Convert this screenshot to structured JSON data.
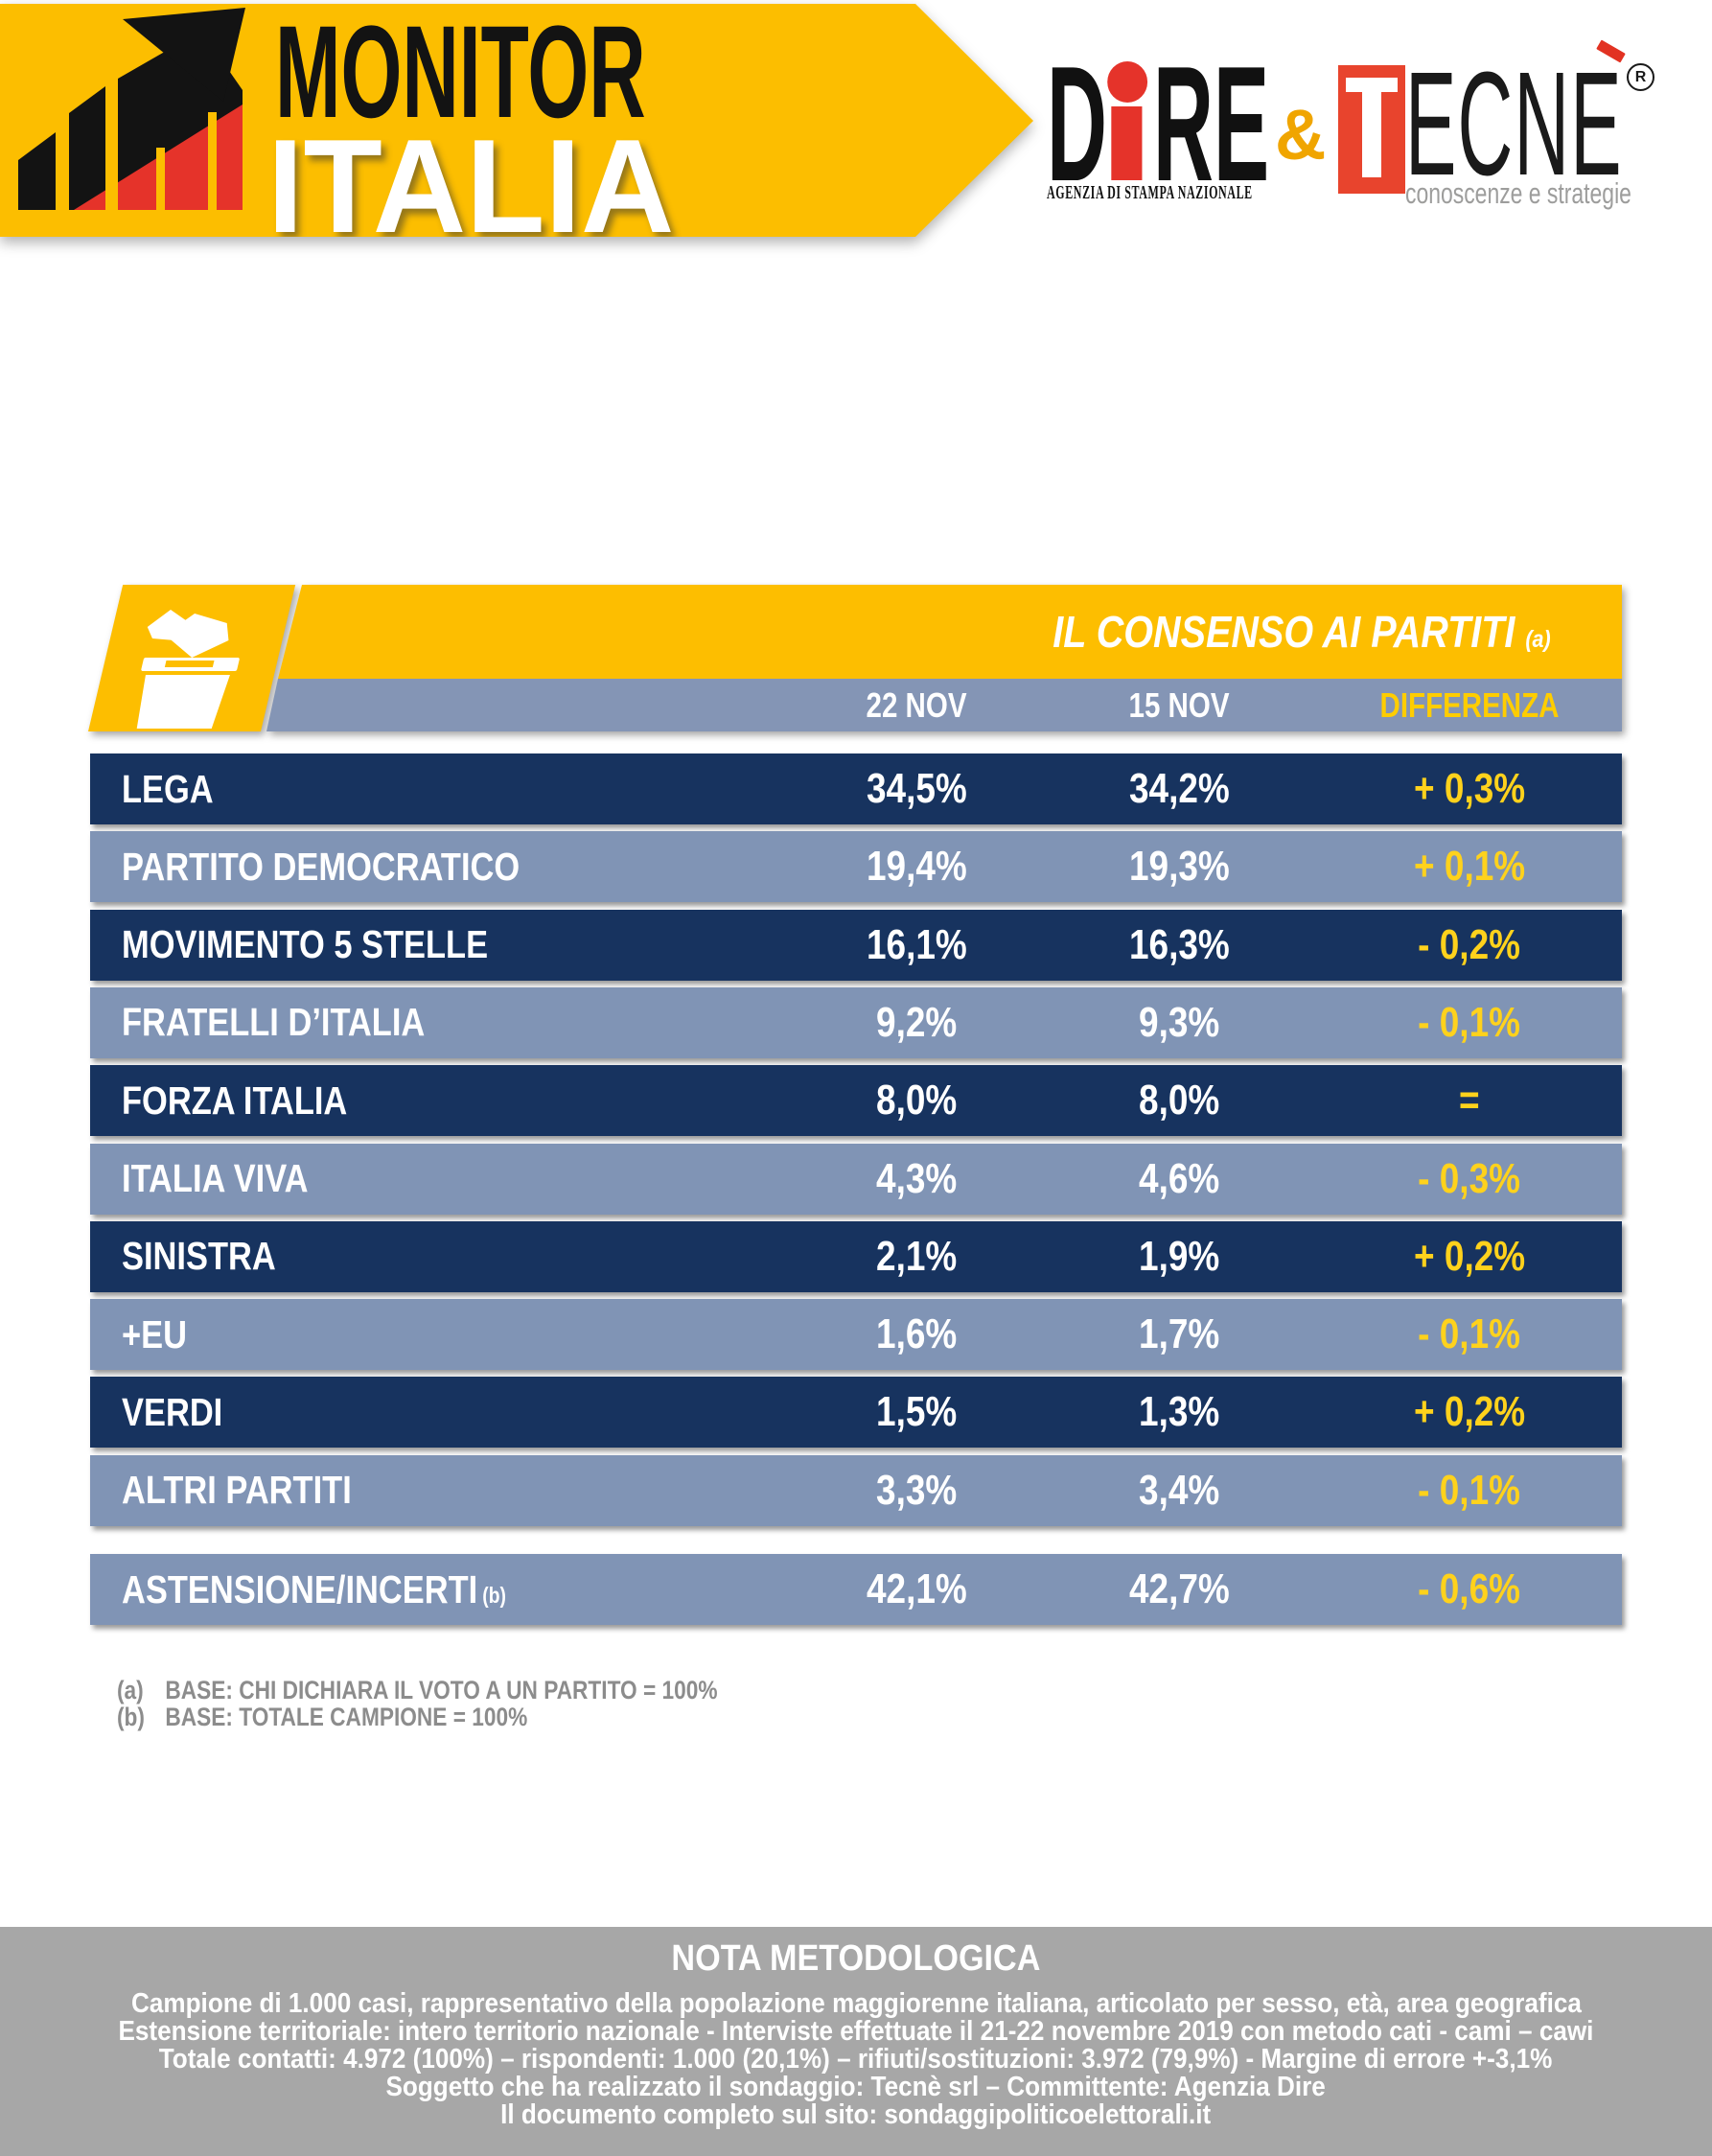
{
  "header": {
    "brand_line1": "MONITOR",
    "brand_line2": "ITALIA",
    "partners": {
      "dire_d": "D",
      "dire_re": "RE",
      "dire_tagline": "AGENZIA DI STAMPA NAZIONALE",
      "ampersand": "&",
      "tecne_word": "ECNE",
      "tecne_tagline": "conoscenze e strategie",
      "registered": "R"
    }
  },
  "colors": {
    "yellow": "#FDBE00",
    "navy": "#17335F",
    "slate_blue": "#8094B5",
    "diff_yellow": "#FFD21C",
    "dire_red": "#E5332A",
    "tecne_red": "#E8442D",
    "nota_gray": "#A7A7A7"
  },
  "table": {
    "title": "IL CONSENSO AI PARTITI",
    "title_note": "(a)",
    "columns": [
      "22 NOV",
      "15 NOV",
      "DIFFERENZA"
    ],
    "rows": [
      {
        "party": "LEGA",
        "nov22": "34,5%",
        "nov15": "34,2%",
        "diff": "+ 0,3%"
      },
      {
        "party": "PARTITO DEMOCRATICO",
        "nov22": "19,4%",
        "nov15": "19,3%",
        "diff": "+ 0,1%"
      },
      {
        "party": "MOVIMENTO 5 STELLE",
        "nov22": "16,1%",
        "nov15": "16,3%",
        "diff": "- 0,2%"
      },
      {
        "party": "FRATELLI D’ITALIA",
        "nov22": "9,2%",
        "nov15": "9,3%",
        "diff": "- 0,1%"
      },
      {
        "party": "FORZA ITALIA",
        "nov22": "8,0%",
        "nov15": "8,0%",
        "diff": "="
      },
      {
        "party": "ITALIA VIVA",
        "nov22": "4,3%",
        "nov15": "4,6%",
        "diff": "- 0,3%"
      },
      {
        "party": "SINISTRA",
        "nov22": "2,1%",
        "nov15": "1,9%",
        "diff": "+ 0,2%"
      },
      {
        "party": "+EU",
        "nov22": "1,6%",
        "nov15": "1,7%",
        "diff": "- 0,1%"
      },
      {
        "party": "VERDI",
        "nov22": "1,5%",
        "nov15": "1,3%",
        "diff": "+ 0,2%"
      },
      {
        "party": "ALTRI PARTITI",
        "nov22": "3,3%",
        "nov15": "3,4%",
        "diff": "-  0,1%"
      }
    ],
    "astensione": {
      "party": "ASTENSIONE/INCERTI",
      "note": "(b)",
      "nov22": "42,1%",
      "nov15": "42,7%",
      "diff": "- 0,6%"
    }
  },
  "footnotes": [
    {
      "marker": "(a)",
      "text": "BASE: CHI DICHIARA IL VOTO A UN PARTITO = 100%"
    },
    {
      "marker": "(b)",
      "text": "BASE: TOTALE CAMPIONE = 100%"
    }
  ],
  "nota": {
    "title": "NOTA METODOLOGICA",
    "lines": [
      "Campione di 1.000 casi, rappresentativo della popolazione maggiorenne italiana, articolato per sesso, età, area geografica",
      "Estensione territoriale: intero territorio nazionale  - Interviste effettuate il 21-22 novembre 2019 con metodo cati - cami – cawi",
      "Totale contatti: 4.972 (100%) – rispondenti: 1.000 (20,1%) – rifiuti/sostituzioni: 3.972 (79,9%) - Margine di errore +-3,1%",
      "Soggetto che ha realizzato il sondaggio: Tecnè srl – Committente: Agenzia Dire",
      "Il documento completo sul sito: sondaggipoliticoelettorali.it"
    ]
  },
  "chart_data": {
    "type": "table",
    "title": "IL CONSENSO AI PARTITI",
    "columns": [
      "22 NOV",
      "15 NOV",
      "DIFFERENZA"
    ],
    "categories": [
      "LEGA",
      "PARTITO DEMOCRATICO",
      "MOVIMENTO 5 STELLE",
      "FRATELLI D'ITALIA",
      "FORZA ITALIA",
      "ITALIA VIVA",
      "SINISTRA",
      "+EU",
      "VERDI",
      "ALTRI PARTITI",
      "ASTENSIONE/INCERTI"
    ],
    "series": [
      {
        "name": "22 NOV",
        "values": [
          34.5,
          19.4,
          16.1,
          9.2,
          8.0,
          4.3,
          2.1,
          1.6,
          1.5,
          3.3,
          42.1
        ]
      },
      {
        "name": "15 NOV",
        "values": [
          34.2,
          19.3,
          16.3,
          9.3,
          8.0,
          4.6,
          1.9,
          1.7,
          1.3,
          3.4,
          42.7
        ]
      },
      {
        "name": "DIFFERENZA",
        "values": [
          0.3,
          0.1,
          -0.2,
          -0.1,
          0.0,
          -0.3,
          0.2,
          -0.1,
          0.2,
          -0.1,
          -0.6
        ]
      }
    ]
  }
}
